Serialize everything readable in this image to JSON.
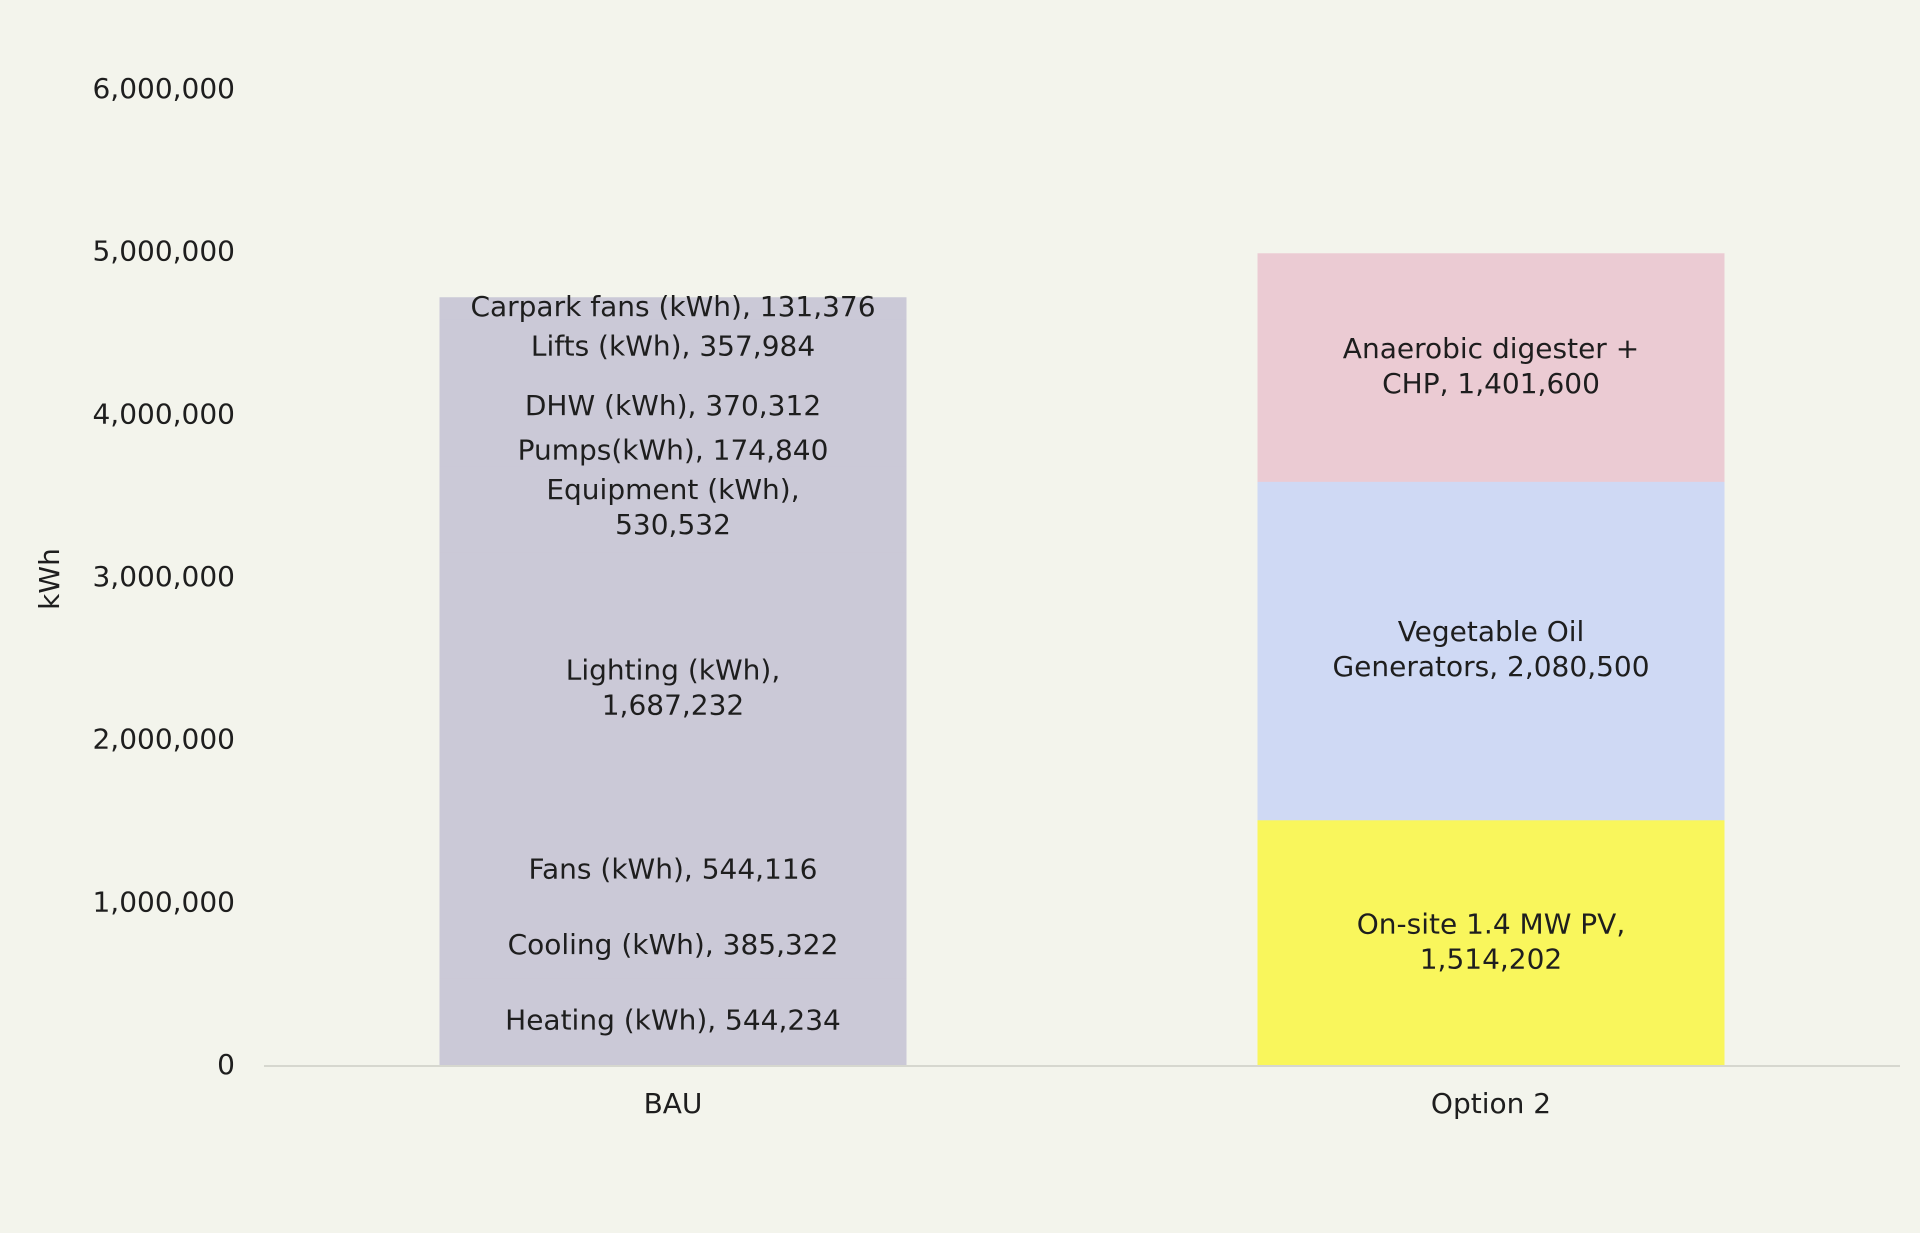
{
  "chart_data": {
    "type": "bar",
    "stacked": true,
    "ylabel": "kWh",
    "ylim": [
      0,
      6000000
    ],
    "yticks": [
      0,
      1000000,
      2000000,
      3000000,
      4000000,
      5000000,
      6000000
    ],
    "ytick_labels": [
      "0",
      "1,000,000",
      "2,000,000",
      "3,000,000",
      "4,000,000",
      "5,000,000",
      "6,000,000"
    ],
    "grid": false,
    "legend": "none",
    "categories": [
      "BAU",
      "Option 2"
    ],
    "stacks": [
      {
        "category": "BAU",
        "color": "#cbc9d7",
        "segments": [
          {
            "name": "Heating (kWh)",
            "value": 544234,
            "label": [
              "Heating (kWh),  544,234"
            ]
          },
          {
            "name": "Cooling (kWh)",
            "value": 385322,
            "label": [
              "Cooling (kWh),  385,322"
            ]
          },
          {
            "name": "Fans (kWh)",
            "value": 544116,
            "label": [
              "Fans (kWh),  544,116"
            ]
          },
          {
            "name": "Lighting (kWh)",
            "value": 1687232,
            "label": [
              "Lighting (kWh),",
              "1,687,232"
            ]
          },
          {
            "name": "Equipment (kWh)",
            "value": 530532,
            "label": [
              "Equipment (kWh),",
              "530,532"
            ]
          },
          {
            "name": "Pumps(kWh)",
            "value": 174840,
            "label": [
              "Pumps(kWh),  174,840"
            ]
          },
          {
            "name": "DHW (kWh)",
            "value": 370312,
            "label": [
              "DHW (kWh),  370,312"
            ]
          },
          {
            "name": "Lifts (kWh)",
            "value": 357984,
            "label": [
              "Lifts (kWh),  357,984"
            ]
          },
          {
            "name": "Carpark fans (kWh)",
            "value": 131376,
            "label": [
              "Carpark fans (kWh),  131,376"
            ]
          }
        ]
      },
      {
        "category": "Option 2",
        "segments": [
          {
            "name": "On-site 1.4 MW PV",
            "value": 1514202,
            "color": "#f9f65c",
            "label": [
              "On-site 1.4 MW PV,",
              "1,514,202"
            ]
          },
          {
            "name": "Vegetable Oil Generators",
            "value": 2080500,
            "color": "#cfd9f4",
            "label": [
              "Vegetable Oil",
              "Generators,  2,080,500"
            ]
          },
          {
            "name": "Anaerobic digester + CHP",
            "value": 1401600,
            "color": "#ebcbd3",
            "label": [
              "Anaerobic digester +",
              "CHP,  1,401,600"
            ]
          }
        ]
      }
    ]
  }
}
